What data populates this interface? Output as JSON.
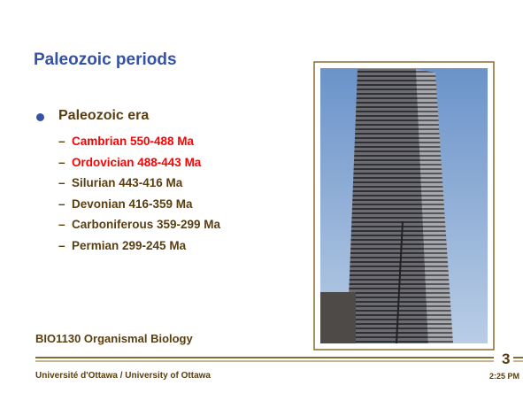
{
  "slide": {
    "title": "Paleozoic periods",
    "bullet": "Paleozoic era",
    "items": [
      {
        "text": "Cambrian 550-488 Ma",
        "color": "#ff0000"
      },
      {
        "text": "Ordovician 488-443 Ma",
        "color": "#ff0000"
      },
      {
        "text": "Silurian 443-416 Ma",
        "color": "#5a3e10"
      },
      {
        "text": "Devonian 416-359 Ma",
        "color": "#5a3e10"
      },
      {
        "text": "Carboniferous 359-299 Ma",
        "color": "#5a3e10"
      },
      {
        "text": "Permian 299-245 Ma",
        "color": "#5a3e10"
      }
    ],
    "course": "BIO1130 Organismal Biology",
    "university": "Université d'Ottawa / University of Ottawa",
    "number": "3",
    "time": "2:25 PM"
  }
}
